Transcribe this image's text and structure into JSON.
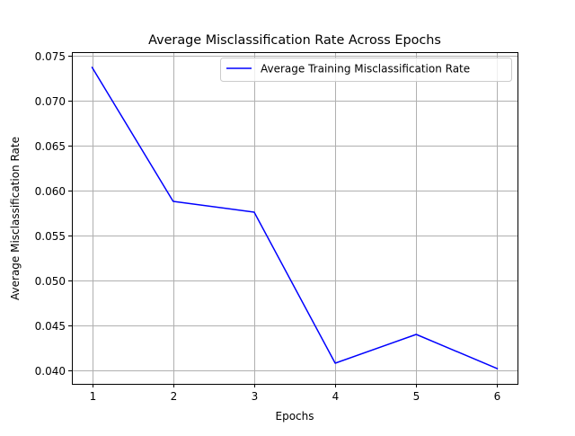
{
  "chart_data": {
    "type": "line",
    "title": "Average Misclassification Rate Across Epochs",
    "xlabel": "Epochs",
    "ylabel": "Average Misclassification Rate",
    "x": [
      1,
      2,
      3,
      4,
      5,
      6
    ],
    "series": [
      {
        "name": "Average Training Misclassification Rate",
        "color": "#0000ff",
        "values": [
          0.0737,
          0.0588,
          0.0576,
          0.0408,
          0.044,
          0.0402
        ]
      }
    ],
    "xticks": [
      "1",
      "2",
      "3",
      "4",
      "5",
      "6"
    ],
    "yticks": [
      "0.040",
      "0.045",
      "0.050",
      "0.055",
      "0.060",
      "0.065",
      "0.070",
      "0.075"
    ],
    "xlim": [
      0.75,
      6.25
    ],
    "ylim": [
      0.0385,
      0.0754
    ],
    "grid": true,
    "legend_position": "upper right"
  }
}
